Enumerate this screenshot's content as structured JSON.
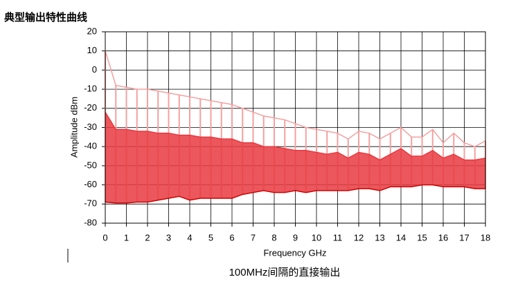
{
  "heading": "典型输出特性曲线",
  "caption": "100MHz间隔的直接输出",
  "chart_data": {
    "type": "comb",
    "x_label": "Frequency GHz",
    "y_label": "Amplitude dBm",
    "x": [
      0,
      0.5,
      1,
      1.5,
      2,
      2.5,
      3,
      3.5,
      4,
      4.5,
      5,
      5.5,
      6,
      6.5,
      7,
      7.5,
      8,
      8.5,
      9,
      9.5,
      10,
      10.5,
      11,
      11.5,
      12,
      12.5,
      13,
      13.5,
      14,
      14.5,
      15,
      15.5,
      16,
      16.5,
      17,
      17.5,
      18
    ],
    "series": [
      {
        "color": "#f4a0a0",
        "values": [
          10,
          -8,
          -9,
          -10,
          -10,
          -11,
          -12,
          -13,
          -14,
          -15,
          -16,
          -17,
          -18,
          -20,
          -22,
          -24,
          -25,
          -26,
          -28,
          -30,
          -31,
          -32,
          -33,
          -36,
          -32,
          -33,
          -36,
          -33,
          -30,
          -35,
          -35,
          -31,
          -38,
          -33,
          -38,
          -40,
          -37
        ]
      },
      {
        "color": "#e8393f",
        "values": [
          -22,
          -31,
          -31,
          -32,
          -32,
          -33,
          -33,
          -34,
          -34,
          -35,
          -35,
          -36,
          -36,
          -38,
          -38,
          -40,
          -40,
          -41,
          -42,
          -42,
          -43,
          -44,
          -43,
          -46,
          -43,
          -44,
          -47,
          -44,
          -41,
          -45,
          -45,
          -42,
          -46,
          -44,
          -47,
          -47,
          -46
        ]
      },
      {
        "color": "#cc0000",
        "values": [
          -69,
          -69.5,
          -69.5,
          -69,
          -69,
          -68,
          -67,
          -66,
          -68,
          -67,
          -67,
          -67,
          -67,
          -65,
          -64,
          -63,
          -64,
          -64,
          -63,
          -64,
          -63,
          -63,
          -63,
          -63,
          -62,
          -62,
          -63,
          -61,
          -61,
          -61,
          -60,
          -60,
          -61,
          -61,
          -61,
          -62,
          -62
        ]
      }
    ],
    "xlim": [
      0,
      18
    ],
    "ylim": [
      -80,
      20
    ],
    "xticks": [
      0,
      1,
      2,
      3,
      4,
      5,
      6,
      7,
      8,
      9,
      10,
      11,
      12,
      13,
      14,
      15,
      16,
      17,
      18
    ],
    "yticks": [
      20,
      10,
      0,
      -10,
      -20,
      -30,
      -40,
      -50,
      -60,
      -70,
      -80
    ],
    "grid": true
  }
}
